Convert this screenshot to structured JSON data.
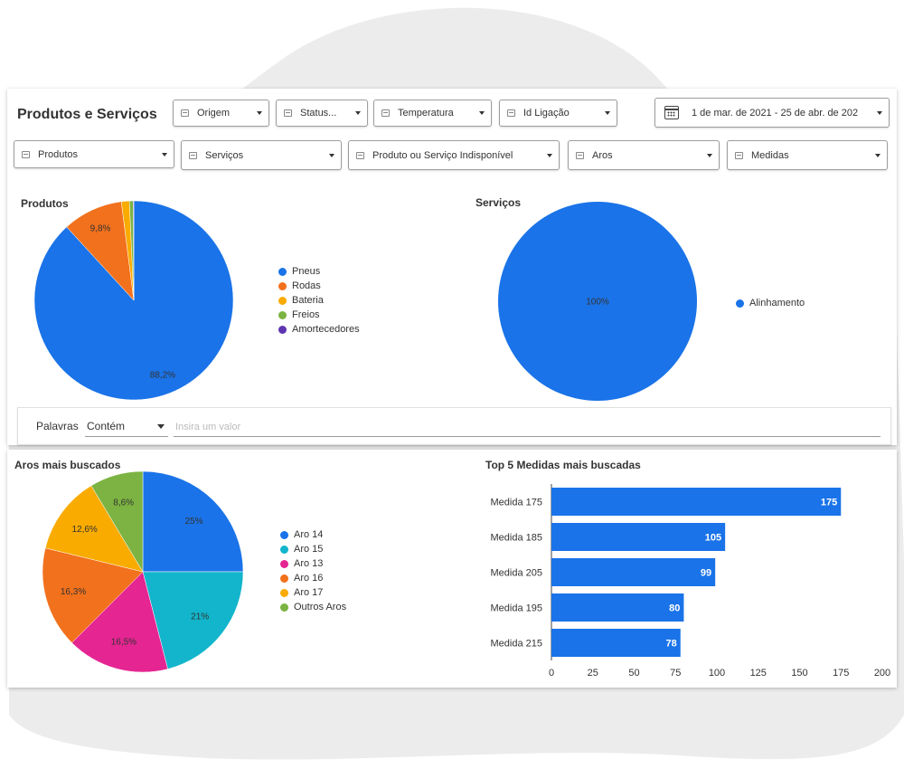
{
  "header": {
    "title": "Produtos e Serviços",
    "filters_row1": [
      {
        "id": "origem",
        "label": "Origem"
      },
      {
        "id": "status",
        "label": "Status..."
      },
      {
        "id": "temperatura",
        "label": "Temperatura"
      },
      {
        "id": "id-ligacao",
        "label": "Id Ligação"
      }
    ],
    "date_range": "1 de mar. de 2021 - 25 de abr. de 202",
    "filters_row2": [
      {
        "id": "produtos",
        "label": "Produtos"
      },
      {
        "id": "servicos",
        "label": "Serviços"
      },
      {
        "id": "produto-servico-indisponivel",
        "label": "Produto ou Serviço Indisponível"
      },
      {
        "id": "aros",
        "label": "Aros"
      },
      {
        "id": "medidas",
        "label": "Medidas"
      }
    ]
  },
  "keyword_filter": {
    "label": "Palavras",
    "operator": "Contém",
    "placeholder": "Insira um valor"
  },
  "chart_data": [
    {
      "type": "pie",
      "title": "Produtos",
      "categories": [
        "Pneus",
        "Rodas",
        "Bateria",
        "Freios",
        "Amortecedores"
      ],
      "values": [
        88.2,
        9.8,
        1.3,
        0.6,
        0.1
      ],
      "value_labels": [
        "88,2%",
        "9,8%",
        "",
        "",
        ""
      ],
      "colors": [
        "#1a73e8",
        "#f2711c",
        "#f9ab00",
        "#7cb342",
        "#5e35b1"
      ]
    },
    {
      "type": "pie",
      "title": "Serviços",
      "categories": [
        "Alinhamento"
      ],
      "values": [
        100
      ],
      "value_labels": [
        "100%"
      ],
      "colors": [
        "#1a73e8"
      ]
    },
    {
      "type": "pie",
      "title": "Aros mais buscados",
      "categories": [
        "Aro 14",
        "Aro 15",
        "Aro 13",
        "Aro 16",
        "Aro 17",
        "Outros Aros"
      ],
      "values": [
        25,
        21,
        16.5,
        16.3,
        12.6,
        8.6
      ],
      "value_labels": [
        "25%",
        "21%",
        "16,5%",
        "16,3%",
        "12,6%",
        "8,6%"
      ],
      "colors": [
        "#1a73e8",
        "#12b5cb",
        "#e52592",
        "#f2711c",
        "#f9ab00",
        "#7cb342"
      ]
    },
    {
      "type": "bar",
      "orientation": "horizontal",
      "title": "Top 5 Medidas mais buscadas",
      "categories": [
        "Medida 175",
        "Medida 185",
        "Medida 205",
        "Medida 195",
        "Medida 215"
      ],
      "values": [
        175,
        105,
        99,
        80,
        78
      ],
      "xlim": [
        0,
        200
      ],
      "x_ticks": [
        0,
        25,
        50,
        75,
        100,
        125,
        150,
        175,
        200
      ],
      "bar_color": "#1a73e8"
    }
  ]
}
